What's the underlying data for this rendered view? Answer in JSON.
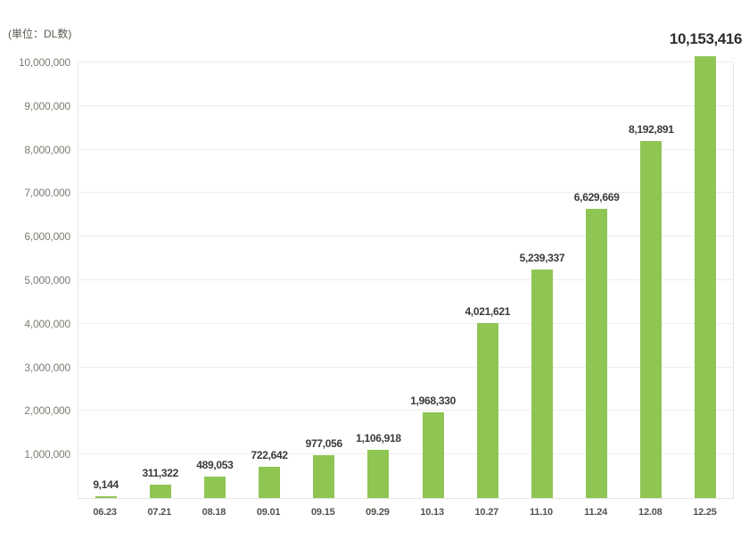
{
  "unit_label": "(単位：DL数)",
  "chart_data": {
    "type": "bar",
    "title": "",
    "unit_label": "(単位：DL数)",
    "categories": [
      "06.23",
      "07.21",
      "08.18",
      "09.01",
      "09.15",
      "09.29",
      "10.13",
      "10.27",
      "11.10",
      "11.24",
      "12.08",
      "12.25"
    ],
    "values": [
      9144,
      311322,
      489053,
      722642,
      977056,
      1106918,
      1968330,
      4021621,
      5239337,
      6629669,
      8192891,
      10153416
    ],
    "value_labels": [
      "9,144",
      "311,322",
      "489,053",
      "722,642",
      "977,056",
      "1,106,918",
      "1,968,330",
      "4,021,621",
      "5,239,337",
      "6,629,669",
      "8,192,891",
      "10,153,416"
    ],
    "highlight_last_value": true,
    "xlabel": "",
    "ylabel": "",
    "ylim": [
      0,
      10000000
    ],
    "ytick_values": [
      1000000,
      2000000,
      3000000,
      4000000,
      5000000,
      6000000,
      7000000,
      8000000,
      9000000,
      10000000
    ],
    "ytick_labels": [
      "1,000,000",
      "2,000,000",
      "3,000,000",
      "4,000,000",
      "5,000,000",
      "6,000,000",
      "7,000,000",
      "8,000,000",
      "9,000,000",
      "10,000,000"
    ],
    "grid": true,
    "legend": false,
    "colors": {
      "bar": "#8fc553",
      "value_label": "#3a3a37",
      "highlight_label": "#2e2e2c",
      "category_label": "#53534c",
      "ytick_label": "#7d7d74",
      "gridline": "#ededeb",
      "axis": "#e4e4e0"
    }
  }
}
